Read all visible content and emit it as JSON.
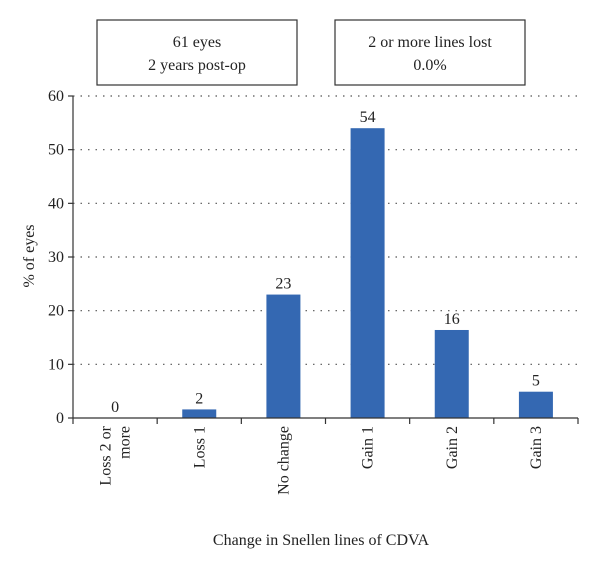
{
  "chart_data": {
    "type": "bar",
    "categories": [
      "Loss 2 or more",
      "Loss 1",
      "No change",
      "Gain 1",
      "Gain 2",
      "Gain 3"
    ],
    "category_lines": [
      [
        "Loss 2 or",
        "more"
      ],
      [
        "Loss 1"
      ],
      [
        "No change"
      ],
      [
        "Gain 1"
      ],
      [
        "Gain 2"
      ],
      [
        "Gain 3"
      ]
    ],
    "values": [
      0,
      1.6,
      23,
      54,
      16.4,
      4.9
    ],
    "value_labels": [
      "0",
      "2",
      "23",
      "54",
      "16",
      "5"
    ],
    "xlabel": "Change in Snellen lines of CDVA",
    "ylabel": "% of eyes",
    "ylim": [
      0,
      60
    ],
    "yticks": [
      0,
      10,
      20,
      30,
      40,
      50,
      60
    ],
    "grid": "horizontal dotted",
    "bar_color": "#3468b2",
    "annotations": [
      {
        "lines": [
          "61 eyes",
          "2 years post-op"
        ]
      },
      {
        "lines": [
          "2 or more lines lost",
          "0.0%"
        ]
      }
    ]
  }
}
